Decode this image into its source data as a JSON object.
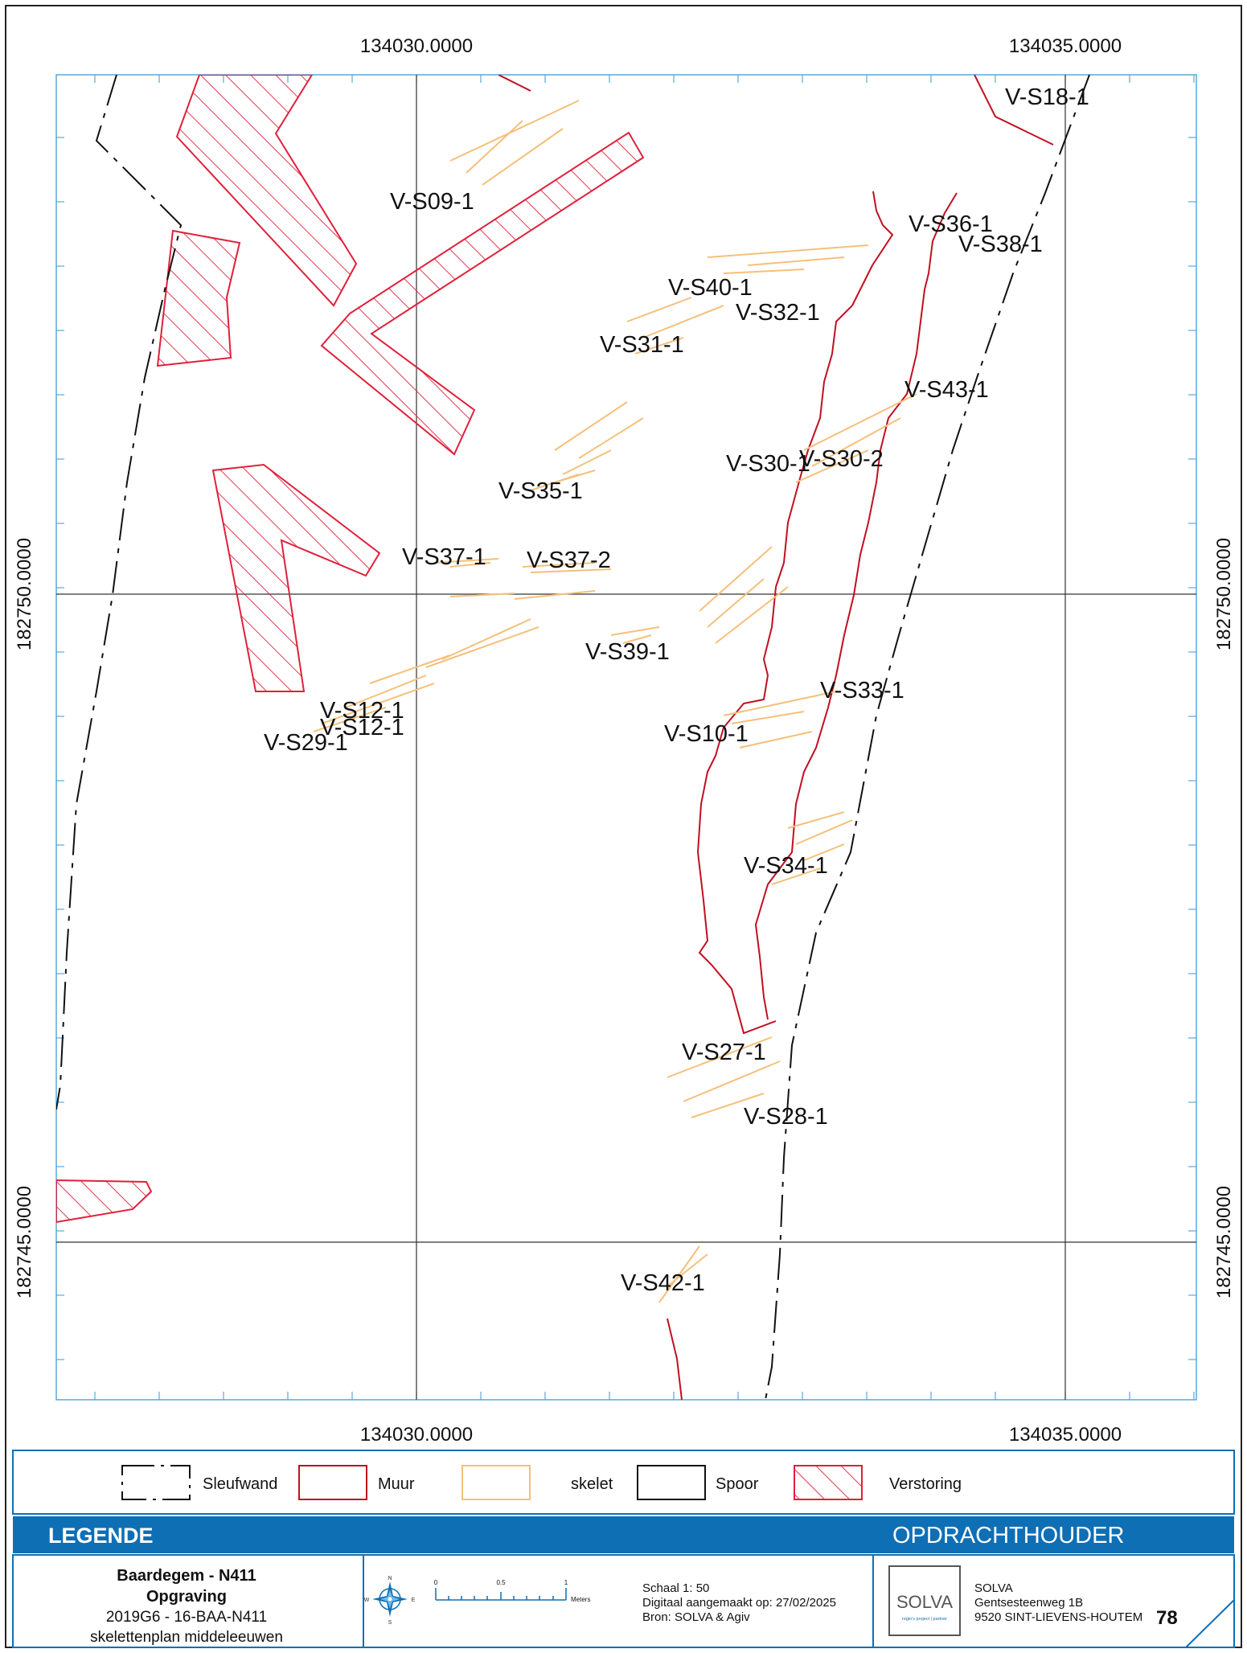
{
  "map": {
    "x_coords": {
      "left": "134030.0000",
      "right": "134035.0000"
    },
    "y_coords": {
      "upper": "182750.0000",
      "lower": "182745.0000"
    },
    "feature_labels": [
      "V-S18-1",
      "V-S09-1",
      "V-S36-1",
      "V-S38-1",
      "V-S40-1",
      "V-S32-1",
      "V-S31-1",
      "V-S43-1",
      "V-S30-1",
      "V-S30-2",
      "V-S35-1",
      "V-S37-1",
      "V-S37-2",
      "V-S39-1",
      "V-S33-1",
      "V-S12-1",
      "V-S12-1",
      "V-S29-1",
      "V-S10-1",
      "V-S34-1",
      "V-S27-1",
      "V-S28-1",
      "V-S42-1"
    ],
    "colors": {
      "muur": "#c01020",
      "verstoring": "#e0203a",
      "skelet": "#f5c07a",
      "frame": "#5aa8d8",
      "band": "#0e6fb5"
    }
  },
  "legend": {
    "items": [
      {
        "label": "Sleufwand",
        "icon": "dashed-line-swatch"
      },
      {
        "label": "Muur",
        "icon": "red-outline-swatch"
      },
      {
        "label": "skelet",
        "icon": "orange-outline-swatch"
      },
      {
        "label": "Spoor",
        "icon": "black-outline-swatch"
      },
      {
        "label": "Verstoring",
        "icon": "hatched-red-swatch"
      }
    ],
    "band_left": "LEGENDE",
    "band_right": "OPDRACHTHOUDER"
  },
  "titleblock": {
    "project": "Baardegem - N411",
    "type": "Opgraving",
    "code": "2019G6 - 16-BAA-N411",
    "subject": "skelettenplan middeleeuwen",
    "scalebar_ticks": [
      "0",
      "0.5",
      "1"
    ],
    "scalebar_unit": "Meters",
    "scale": "Schaal 1: 50",
    "digitized": "Digitaal aangemaakt op: 27/02/2025",
    "source": "Bron: SOLVA & Agiv",
    "logo_text": "SOLVA",
    "logo_tagline": "regio's project | partner",
    "client_name": "SOLVA",
    "client_street": "Gentsesteenweg 1B",
    "client_city": "9520 SINT-LIEVENS-HOUTEM",
    "sheet_number": "78"
  }
}
